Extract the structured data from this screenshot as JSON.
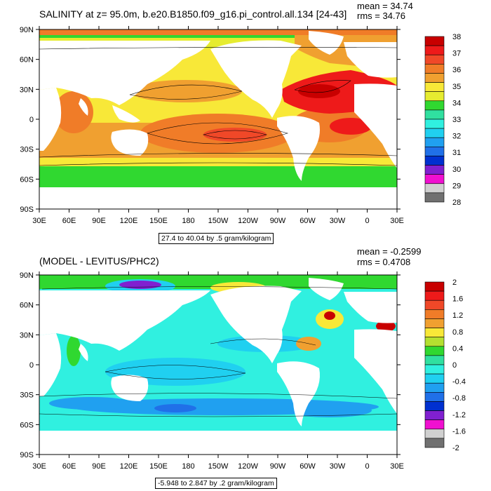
{
  "colors": {
    "land": "#ffffff",
    "frame": "#000000"
  },
  "lat_ticks": [
    "90N",
    "60N",
    "30N",
    "0",
    "30S",
    "60S",
    "90S"
  ],
  "lon_ticks": [
    "30E",
    "60E",
    "90E",
    "120E",
    "150E",
    "180",
    "150W",
    "120W",
    "90W",
    "60W",
    "30W",
    "0",
    "30E"
  ],
  "top": {
    "title": "SALINITY at z=  95.0m, b.e20.B1850.f09_g16.pi_control.all.134 [24-43]",
    "mean": "mean = 34.74",
    "rms": "rms = 34.76",
    "info": "27.4 to 40.04 by .5 gram/kilogram",
    "legend_labels": [
      "38",
      "37",
      "36",
      "35",
      "34",
      "33",
      "32",
      "31",
      "30",
      "29",
      "28"
    ],
    "legend_colors": [
      "#c80000",
      "#ee1a1a",
      "#f04828",
      "#f07c28",
      "#f0a030",
      "#f8e838",
      "#e6ec30",
      "#30d830",
      "#30e0a0",
      "#30f0e0",
      "#20d0f0",
      "#20a0f0",
      "#2070e8",
      "#0030d0",
      "#8020d0",
      "#f010d0",
      "#d0d0d0",
      "#707070"
    ]
  },
  "bottom": {
    "title": "(MODEL - LEVITUS/PHC2)",
    "mean": "mean = -0.2599",
    "rms": "rms = 0.4708",
    "info": "-5.948 to 2.847 by .2 gram/kilogram",
    "legend_labels": [
      "2",
      "1.6",
      "1.2",
      "0.8",
      "0.4",
      "0",
      "-0.4",
      "-0.8",
      "-1.2",
      "-1.6",
      "-2"
    ],
    "legend_colors": [
      "#c80000",
      "#ee1a1a",
      "#f04828",
      "#f07c28",
      "#f0a030",
      "#f8e838",
      "#b4e030",
      "#30d830",
      "#30e0a0",
      "#30f0e0",
      "#20d0f0",
      "#20a0f0",
      "#2070e8",
      "#0030d0",
      "#8020d0",
      "#f010d0",
      "#d0d0d0",
      "#707070"
    ]
  }
}
